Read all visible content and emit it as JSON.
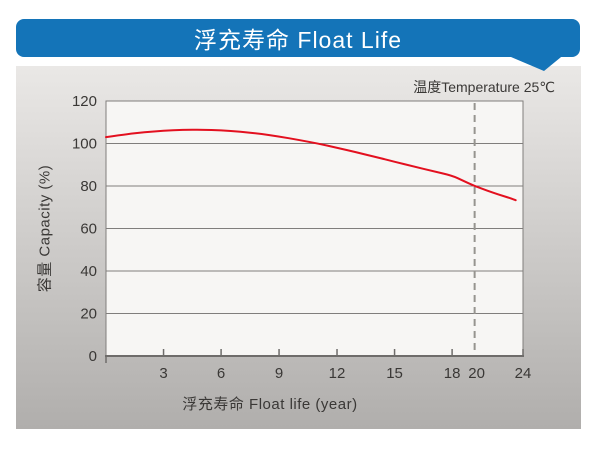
{
  "banner": {
    "title": "浮充寿命 Float Life"
  },
  "colors": {
    "accent_blue": "#1474b8",
    "title_text": "#ffffff",
    "curve_red": "#e3101f",
    "panel_top": "#eae8e6",
    "panel_bottom": "#b0aeac",
    "plot_bg": "#f7f6f4",
    "grid_line": "#807e7c",
    "axis_line": "#6e6c6a",
    "dashed_line": "#96948f",
    "text_dark": "#3a3836"
  },
  "chart_data": {
    "type": "line",
    "title": "浮充寿命 Float Life",
    "xlabel": "浮充寿命  Float life (year)",
    "ylabel": "容量 Capacity (%)",
    "annotation": "温度Temperature 25℃",
    "xlim": [
      0,
      24
    ],
    "ylim": [
      0,
      120
    ],
    "y_ticks": [
      0,
      20,
      40,
      60,
      80,
      100,
      120
    ],
    "x_ticks": [
      3,
      6,
      9,
      12,
      15,
      18,
      20,
      24
    ],
    "x_tick_axis_fractions": [
      [
        0,
        0
      ],
      [
        3,
        0.138
      ],
      [
        6,
        0.276
      ],
      [
        9,
        0.415
      ],
      [
        12,
        0.554
      ],
      [
        15,
        0.692
      ],
      [
        18,
        0.83
      ],
      [
        20,
        0.884
      ],
      [
        24,
        1.0
      ]
    ],
    "grid": "horizontal gridlines at each 20% step",
    "legend": "none",
    "reference_line": {
      "x_year": 20,
      "style": "dashed-vertical",
      "meaning": "float life at 80% capacity, 25°C"
    },
    "series": [
      {
        "name": "Capacity retention vs float life at 25°C",
        "color": "#e3101f",
        "points": [
          [
            0,
            103.0
          ],
          [
            1,
            104.3
          ],
          [
            2,
            105.3
          ],
          [
            3,
            106.0
          ],
          [
            4,
            106.4
          ],
          [
            5,
            106.5
          ],
          [
            6,
            106.2
          ],
          [
            7,
            105.6
          ],
          [
            8,
            104.6
          ],
          [
            9,
            103.3
          ],
          [
            10,
            101.7
          ],
          [
            11,
            100.0
          ],
          [
            12,
            98.0
          ],
          [
            13,
            95.9
          ],
          [
            14,
            93.7
          ],
          [
            15,
            91.4
          ],
          [
            16,
            89.2
          ],
          [
            17,
            87.0
          ],
          [
            18,
            84.9
          ],
          [
            19,
            82.4
          ],
          [
            20,
            80.0
          ],
          [
            21,
            77.9
          ],
          [
            22,
            75.9
          ],
          [
            23,
            74.2
          ],
          [
            23.4,
            73.3
          ]
        ]
      }
    ]
  }
}
